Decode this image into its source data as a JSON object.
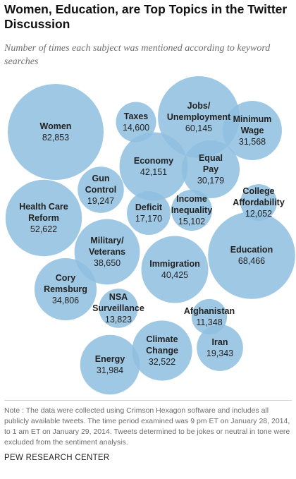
{
  "chart_data": {
    "type": "bubble",
    "title": "Women, Education, are Top Topics in the Twitter Discussion",
    "subtitle": "Number of times each subject was mentioned according to keyword searches",
    "color": "#8fbfdf",
    "series": [
      {
        "label": [
          "Women"
        ],
        "value": "82,853",
        "size": 82853
      },
      {
        "label": [
          "Taxes"
        ],
        "value": "14,600",
        "size": 14600
      },
      {
        "label": [
          "Jobs/",
          "Unemployment"
        ],
        "value": "60,145",
        "size": 60145
      },
      {
        "label": [
          "Minimum",
          "Wage"
        ],
        "value": "31,568",
        "size": 31568
      },
      {
        "label": [
          "Economy"
        ],
        "value": "42,151",
        "size": 42151
      },
      {
        "label": [
          "Equal",
          "Pay"
        ],
        "value": "30,179",
        "size": 30179
      },
      {
        "label": [
          "Gun",
          "Control"
        ],
        "value": "19,247",
        "size": 19247
      },
      {
        "label": [
          "College",
          "Affordability"
        ],
        "value": "12,052",
        "size": 12052
      },
      {
        "label": [
          "Deficit"
        ],
        "value": "17,170",
        "size": 17170
      },
      {
        "label": [
          "Income",
          "Inequality"
        ],
        "value": "15,102",
        "size": 15102
      },
      {
        "label": [
          "Health Care",
          "Reform"
        ],
        "value": "52,622",
        "size": 52622
      },
      {
        "label": [
          "Military/",
          "Veterans"
        ],
        "value": "38,650",
        "size": 38650
      },
      {
        "label": [
          "Immigration"
        ],
        "value": "40,425",
        "size": 40425
      },
      {
        "label": [
          "Education"
        ],
        "value": "68,466",
        "size": 68466
      },
      {
        "label": [
          "Cory",
          "Remsburg"
        ],
        "value": "34,806",
        "size": 34806
      },
      {
        "label": [
          "NSA",
          "Surveillance"
        ],
        "value": "13,823",
        "size": 13823
      },
      {
        "label": [
          "Afghanistan"
        ],
        "value": "11,348",
        "size": 11348
      },
      {
        "label": [
          "Climate",
          "Change"
        ],
        "value": "32,522",
        "size": 32522
      },
      {
        "label": [
          "Iran"
        ],
        "value": "19,343",
        "size": 19343
      },
      {
        "label": [
          "Energy"
        ],
        "value": "31,984",
        "size": 31984
      }
    ]
  },
  "note": "Note : The data were collected using Crimson Hexagon software and includes all publicly available tweets. The time period examined was 9 pm ET on January 28, 2014, to 1 am ET on January 29, 2014. Tweets determined to be jokes or neutral in tone were excluded from the sentiment analysis.",
  "source": "PEW RESEARCH CENTER"
}
